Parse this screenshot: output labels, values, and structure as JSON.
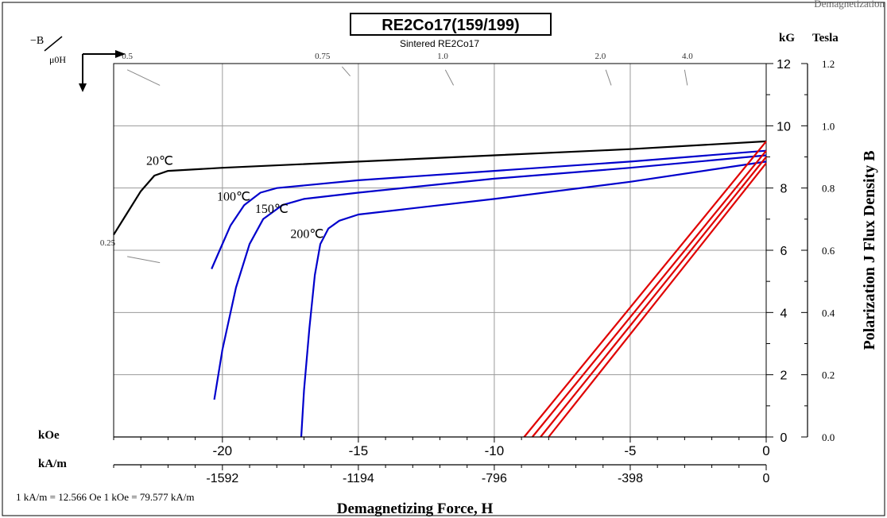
{
  "corner_text": "Demagnetization",
  "chart_data": {
    "type": "line",
    "title": "RE2Co17(159/199)",
    "subtitle": "Sintered RE2Co17",
    "xlabel": "Demagnetizing Force, H",
    "ylabel": "Polarization J Flux Density B",
    "x_unit_label": "kOe",
    "x2_unit_label": "kA/m",
    "y_unit_label": "kG",
    "y2_unit_label": "Tesla",
    "corner_label_b": "−B",
    "corner_label_h": "μ0H",
    "conversion_note": "1 kA/m = 12.566 Oe 1 kOe = 79.577 kA/m",
    "xlim": [
      -24,
      0
    ],
    "ylim": [
      0,
      12
    ],
    "x_ticks": [
      {
        "value": -20,
        "label": "-20"
      },
      {
        "value": -15,
        "label": "-15"
      },
      {
        "value": -10,
        "label": "-10"
      },
      {
        "value": -5,
        "label": "-5"
      },
      {
        "value": 0,
        "label": "0"
      }
    ],
    "x2_ticks": [
      {
        "value": -20,
        "label": "-1592"
      },
      {
        "value": -15,
        "label": "-1194"
      },
      {
        "value": -10,
        "label": "-796"
      },
      {
        "value": -5,
        "label": "-398"
      },
      {
        "value": 0,
        "label": "0"
      }
    ],
    "y_ticks": [
      {
        "value": 0,
        "label": "0"
      },
      {
        "value": 2,
        "label": "2"
      },
      {
        "value": 4,
        "label": "4"
      },
      {
        "value": 6,
        "label": "6"
      },
      {
        "value": 8,
        "label": "8"
      },
      {
        "value": 10,
        "label": "10"
      },
      {
        "value": 12,
        "label": "12"
      }
    ],
    "y2_ticks": [
      {
        "value": 0,
        "label": "0.0"
      },
      {
        "value": 2,
        "label": "0.2"
      },
      {
        "value": 4,
        "label": "0.4"
      },
      {
        "value": 6,
        "label": "0.6"
      },
      {
        "value": 8,
        "label": "0.8"
      },
      {
        "value": 10,
        "label": "1.0"
      },
      {
        "value": 12,
        "label": "1.2"
      }
    ],
    "permeance_labels": [
      {
        "label": "0.5",
        "x": -23.7,
        "y": 12
      },
      {
        "label": "0.25",
        "x": -24.5,
        "y": 6
      },
      {
        "label": "0.75",
        "x": -16.6,
        "y": 12
      },
      {
        "label": "1.0",
        "x": -12.1,
        "y": 12
      },
      {
        "label": "2.0",
        "x": -6.3,
        "y": 12
      },
      {
        "label": "4.0",
        "x": -3.1,
        "y": 12
      }
    ],
    "permeance_ticks": [
      {
        "x1": -23.5,
        "y1": 11.8,
        "x2": -22.3,
        "y2": 11.3
      },
      {
        "x1": -23.5,
        "y1": 5.8,
        "x2": -22.3,
        "y2": 5.6
      },
      {
        "x1": -15.6,
        "y1": 11.9,
        "x2": -15.3,
        "y2": 11.6
      },
      {
        "x1": -11.8,
        "y1": 11.8,
        "x2": -11.5,
        "y2": 11.3
      },
      {
        "x1": -5.9,
        "y1": 11.8,
        "x2": -5.7,
        "y2": 11.3
      },
      {
        "x1": -3.0,
        "y1": 11.8,
        "x2": -2.9,
        "y2": 11.3
      }
    ],
    "grid": true,
    "grid_x": [
      -20,
      -15,
      -10,
      -5
    ],
    "grid_y": [
      2,
      4,
      6,
      8,
      10
    ],
    "series": [
      {
        "name": "20℃",
        "kind": "J",
        "color": "#000000",
        "points": [
          [
            -24,
            6.5
          ],
          [
            -23.5,
            7.2
          ],
          [
            -23,
            7.9
          ],
          [
            -22.5,
            8.4
          ],
          [
            -22,
            8.55
          ],
          [
            -20,
            8.65
          ],
          [
            -15,
            8.85
          ],
          [
            -10,
            9.05
          ],
          [
            -5,
            9.25
          ],
          [
            0,
            9.5
          ]
        ]
      },
      {
        "name": "100℃",
        "kind": "J",
        "color": "#0000cc",
        "points": [
          [
            -20.4,
            5.4
          ],
          [
            -20.1,
            6.0
          ],
          [
            -19.7,
            6.8
          ],
          [
            -19.2,
            7.45
          ],
          [
            -18.6,
            7.85
          ],
          [
            -18,
            8.0
          ],
          [
            -15,
            8.25
          ],
          [
            -10,
            8.55
          ],
          [
            -5,
            8.85
          ],
          [
            0,
            9.2
          ]
        ]
      },
      {
        "name": "150℃",
        "kind": "J",
        "color": "#0000cc",
        "points": [
          [
            -20.3,
            1.2
          ],
          [
            -20,
            2.8
          ],
          [
            -19.5,
            4.8
          ],
          [
            -19,
            6.2
          ],
          [
            -18.5,
            7.0
          ],
          [
            -17.8,
            7.45
          ],
          [
            -17,
            7.65
          ],
          [
            -15,
            7.85
          ],
          [
            -10,
            8.3
          ],
          [
            -5,
            8.65
          ],
          [
            0,
            9.05
          ]
        ]
      },
      {
        "name": "200℃",
        "kind": "J",
        "color": "#0000cc",
        "points": [
          [
            -17.1,
            0
          ],
          [
            -17,
            1.5
          ],
          [
            -16.8,
            3.5
          ],
          [
            -16.6,
            5.2
          ],
          [
            -16.4,
            6.2
          ],
          [
            -16.1,
            6.7
          ],
          [
            -15.7,
            6.95
          ],
          [
            -15,
            7.15
          ],
          [
            -10,
            7.65
          ],
          [
            -5,
            8.2
          ],
          [
            0,
            8.85
          ]
        ]
      },
      {
        "name": "",
        "kind": "B",
        "color": "#e00000",
        "points": [
          [
            -8.9,
            0
          ],
          [
            0,
            9.5
          ]
        ]
      },
      {
        "name": "",
        "kind": "B",
        "color": "#e00000",
        "points": [
          [
            -8.6,
            0
          ],
          [
            0,
            9.2
          ]
        ]
      },
      {
        "name": "",
        "kind": "B",
        "color": "#e00000",
        "points": [
          [
            -8.3,
            0
          ],
          [
            0,
            9.0
          ]
        ]
      },
      {
        "name": "",
        "kind": "B",
        "color": "#e00000",
        "points": [
          [
            -8.0,
            0
          ],
          [
            0,
            8.8
          ]
        ]
      }
    ],
    "curve_labels": [
      {
        "text": "20℃",
        "x": -22.8,
        "y": 8.75
      },
      {
        "text": "100℃",
        "x": -20.2,
        "y": 7.6
      },
      {
        "text": "150℃",
        "x": -18.8,
        "y": 7.2
      },
      {
        "text": "200℃",
        "x": -17.5,
        "y": 6.4
      }
    ]
  }
}
